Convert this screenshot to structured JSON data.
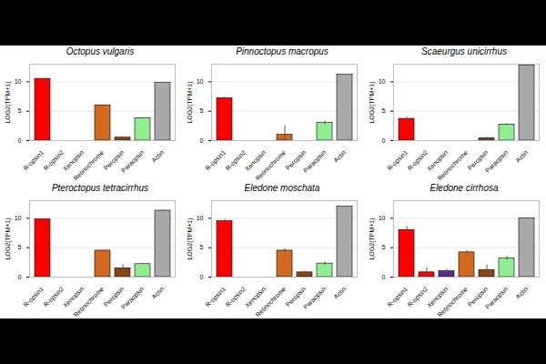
{
  "chart_data": [
    {
      "type": "bar",
      "title": "Octopus vulgaris",
      "ylabel": "LOG2(TPM+1)",
      "categories": [
        "R-opsin1",
        "R-opsin2",
        "Xenopsin",
        "Retinochrome",
        "Peropsin",
        "Paraopsin",
        "Actin"
      ],
      "values": [
        10.5,
        0,
        0,
        6.0,
        0.5,
        3.8,
        9.8
      ],
      "errors": [
        0.1,
        0,
        0,
        0.1,
        0.1,
        0.1,
        0.1
      ],
      "colors": [
        "#ff0000",
        "#ff0000",
        "#5b2c8f",
        "#d2691e",
        "#8b4513",
        "#90ee90",
        "#a9a9a9"
      ],
      "ylim": [
        0,
        13
      ],
      "yticks": [
        0,
        5,
        10
      ],
      "grid": true
    },
    {
      "type": "bar",
      "title": "Pinnoctopus macropus",
      "ylabel": "LOG2(TPM+1)",
      "categories": [
        "R-opsin1",
        "R-opsin2",
        "Xenopsin",
        "Retinochrome",
        "Peropsin",
        "Paraopsin",
        "Actin"
      ],
      "values": [
        7.2,
        0,
        0,
        1.0,
        0,
        3.0,
        11.2
      ],
      "errors": [
        0.2,
        0,
        0,
        1.5,
        0,
        0.3,
        0.1
      ],
      "colors": [
        "#ff0000",
        "#ff0000",
        "#5b2c8f",
        "#d2691e",
        "#8b4513",
        "#90ee90",
        "#a9a9a9"
      ],
      "ylim": [
        0,
        13
      ],
      "yticks": [
        0,
        5,
        10
      ],
      "grid": true
    },
    {
      "type": "bar",
      "title": "Scaeurgus unicirrhus",
      "ylabel": "LOG2(TPM+1)",
      "categories": [
        "R-opsin1",
        "R-opsin2",
        "Xenopsin",
        "Retinochrome",
        "Peropsin",
        "Paraopsin",
        "Actin"
      ],
      "values": [
        3.7,
        0,
        0,
        0,
        0.4,
        2.7,
        12.8
      ],
      "errors": [
        0.3,
        0,
        0,
        0,
        0.2,
        0.2,
        0.1
      ],
      "colors": [
        "#ff0000",
        "#ff0000",
        "#5b2c8f",
        "#d2691e",
        "#8b4513",
        "#90ee90",
        "#a9a9a9"
      ],
      "ylim": [
        0,
        13
      ],
      "yticks": [
        0,
        5,
        10
      ],
      "grid": true
    },
    {
      "type": "bar",
      "title": "Pteroctopus tetracirrhus",
      "ylabel": "LOG2(TPM+1)",
      "categories": [
        "R-opsin1",
        "R-opsin2",
        "Xenopsin",
        "Retinochrome",
        "Peropsin",
        "Paraopsin",
        "Actin"
      ],
      "values": [
        9.8,
        0,
        0,
        4.5,
        1.5,
        2.2,
        11.3
      ],
      "errors": [
        0.1,
        0,
        0,
        0.1,
        0.6,
        0.1,
        0.1
      ],
      "colors": [
        "#ff0000",
        "#ff0000",
        "#5b2c8f",
        "#d2691e",
        "#8b4513",
        "#90ee90",
        "#a9a9a9"
      ],
      "ylim": [
        0,
        13
      ],
      "yticks": [
        0,
        5,
        10
      ],
      "grid": true
    },
    {
      "type": "bar",
      "title": "Eledone moschata",
      "ylabel": "LOG2(TPM+1)",
      "categories": [
        "R-opsin1",
        "R-opsin2",
        "Xenopsin",
        "Retinochrome",
        "Peropsin",
        "Paraopsin",
        "Actin"
      ],
      "values": [
        9.5,
        0,
        0,
        4.5,
        0.8,
        2.3,
        12.0
      ],
      "errors": [
        0.3,
        0,
        0,
        0.3,
        0.2,
        0.3,
        0.1
      ],
      "colors": [
        "#ff0000",
        "#ff0000",
        "#5b2c8f",
        "#d2691e",
        "#8b4513",
        "#90ee90",
        "#a9a9a9"
      ],
      "ylim": [
        0,
        13
      ],
      "yticks": [
        0,
        5,
        10
      ],
      "grid": true
    },
    {
      "type": "bar",
      "title": "Eledone cirrhosa",
      "ylabel": "LOG2(TPM+1)",
      "categories": [
        "R-opsin1",
        "R-opsin2",
        "Xenopsin",
        "Retinochrome",
        "Peropsin",
        "Paraopsin",
        "Actin"
      ],
      "values": [
        8.0,
        0.8,
        1.0,
        4.2,
        1.2,
        3.2,
        10.0
      ],
      "errors": [
        0.6,
        0.8,
        0.4,
        0.3,
        0.8,
        0.3,
        0.1
      ],
      "colors": [
        "#ff0000",
        "#ff0000",
        "#5b2c8f",
        "#d2691e",
        "#8b4513",
        "#90ee90",
        "#a9a9a9"
      ],
      "ylim": [
        0,
        13
      ],
      "yticks": [
        0,
        5,
        10
      ],
      "grid": true
    }
  ]
}
